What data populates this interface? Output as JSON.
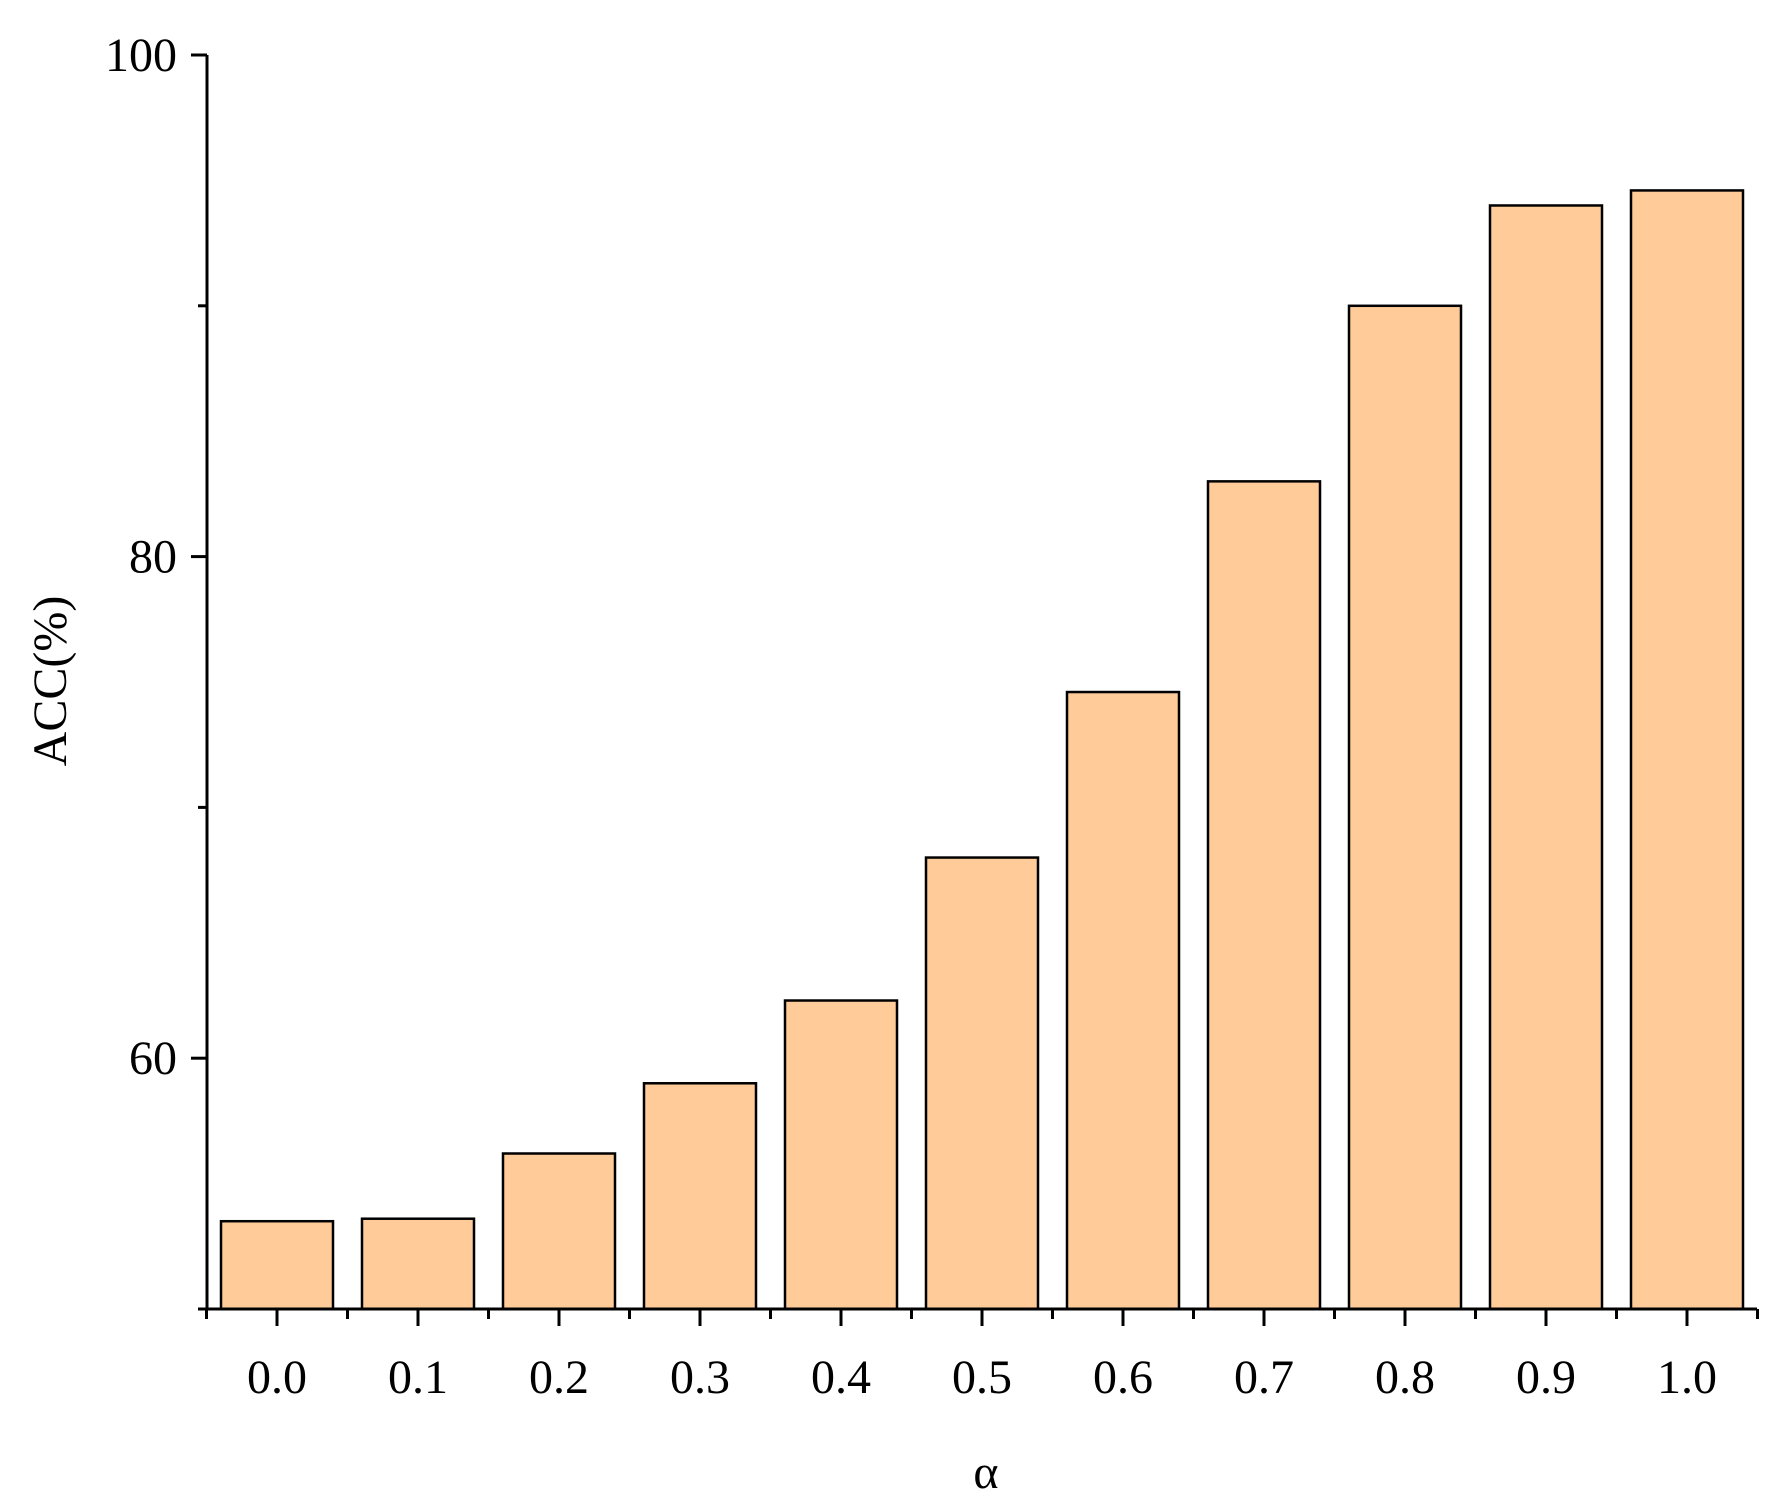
{
  "chart_data": {
    "type": "bar",
    "categories": [
      "0.0",
      "0.1",
      "0.2",
      "0.3",
      "0.4",
      "0.5",
      "0.6",
      "0.7",
      "0.8",
      "0.9",
      "1.0"
    ],
    "values": [
      53.5,
      53.6,
      56.2,
      59.0,
      62.3,
      68.0,
      74.6,
      83.0,
      90.0,
      94.0,
      94.6
    ],
    "xlabel": "α",
    "ylabel": "ACC(%)",
    "ylim": [
      50,
      100
    ],
    "yticks_major": [
      60,
      80,
      100
    ],
    "yticks_major_labels": [
      "60",
      "80",
      "100"
    ],
    "yticks_minor": [
      50,
      70,
      90
    ],
    "grid": false,
    "legend": "none",
    "bar_color": "#FFCC99",
    "bar_edge_color": "#000000"
  }
}
